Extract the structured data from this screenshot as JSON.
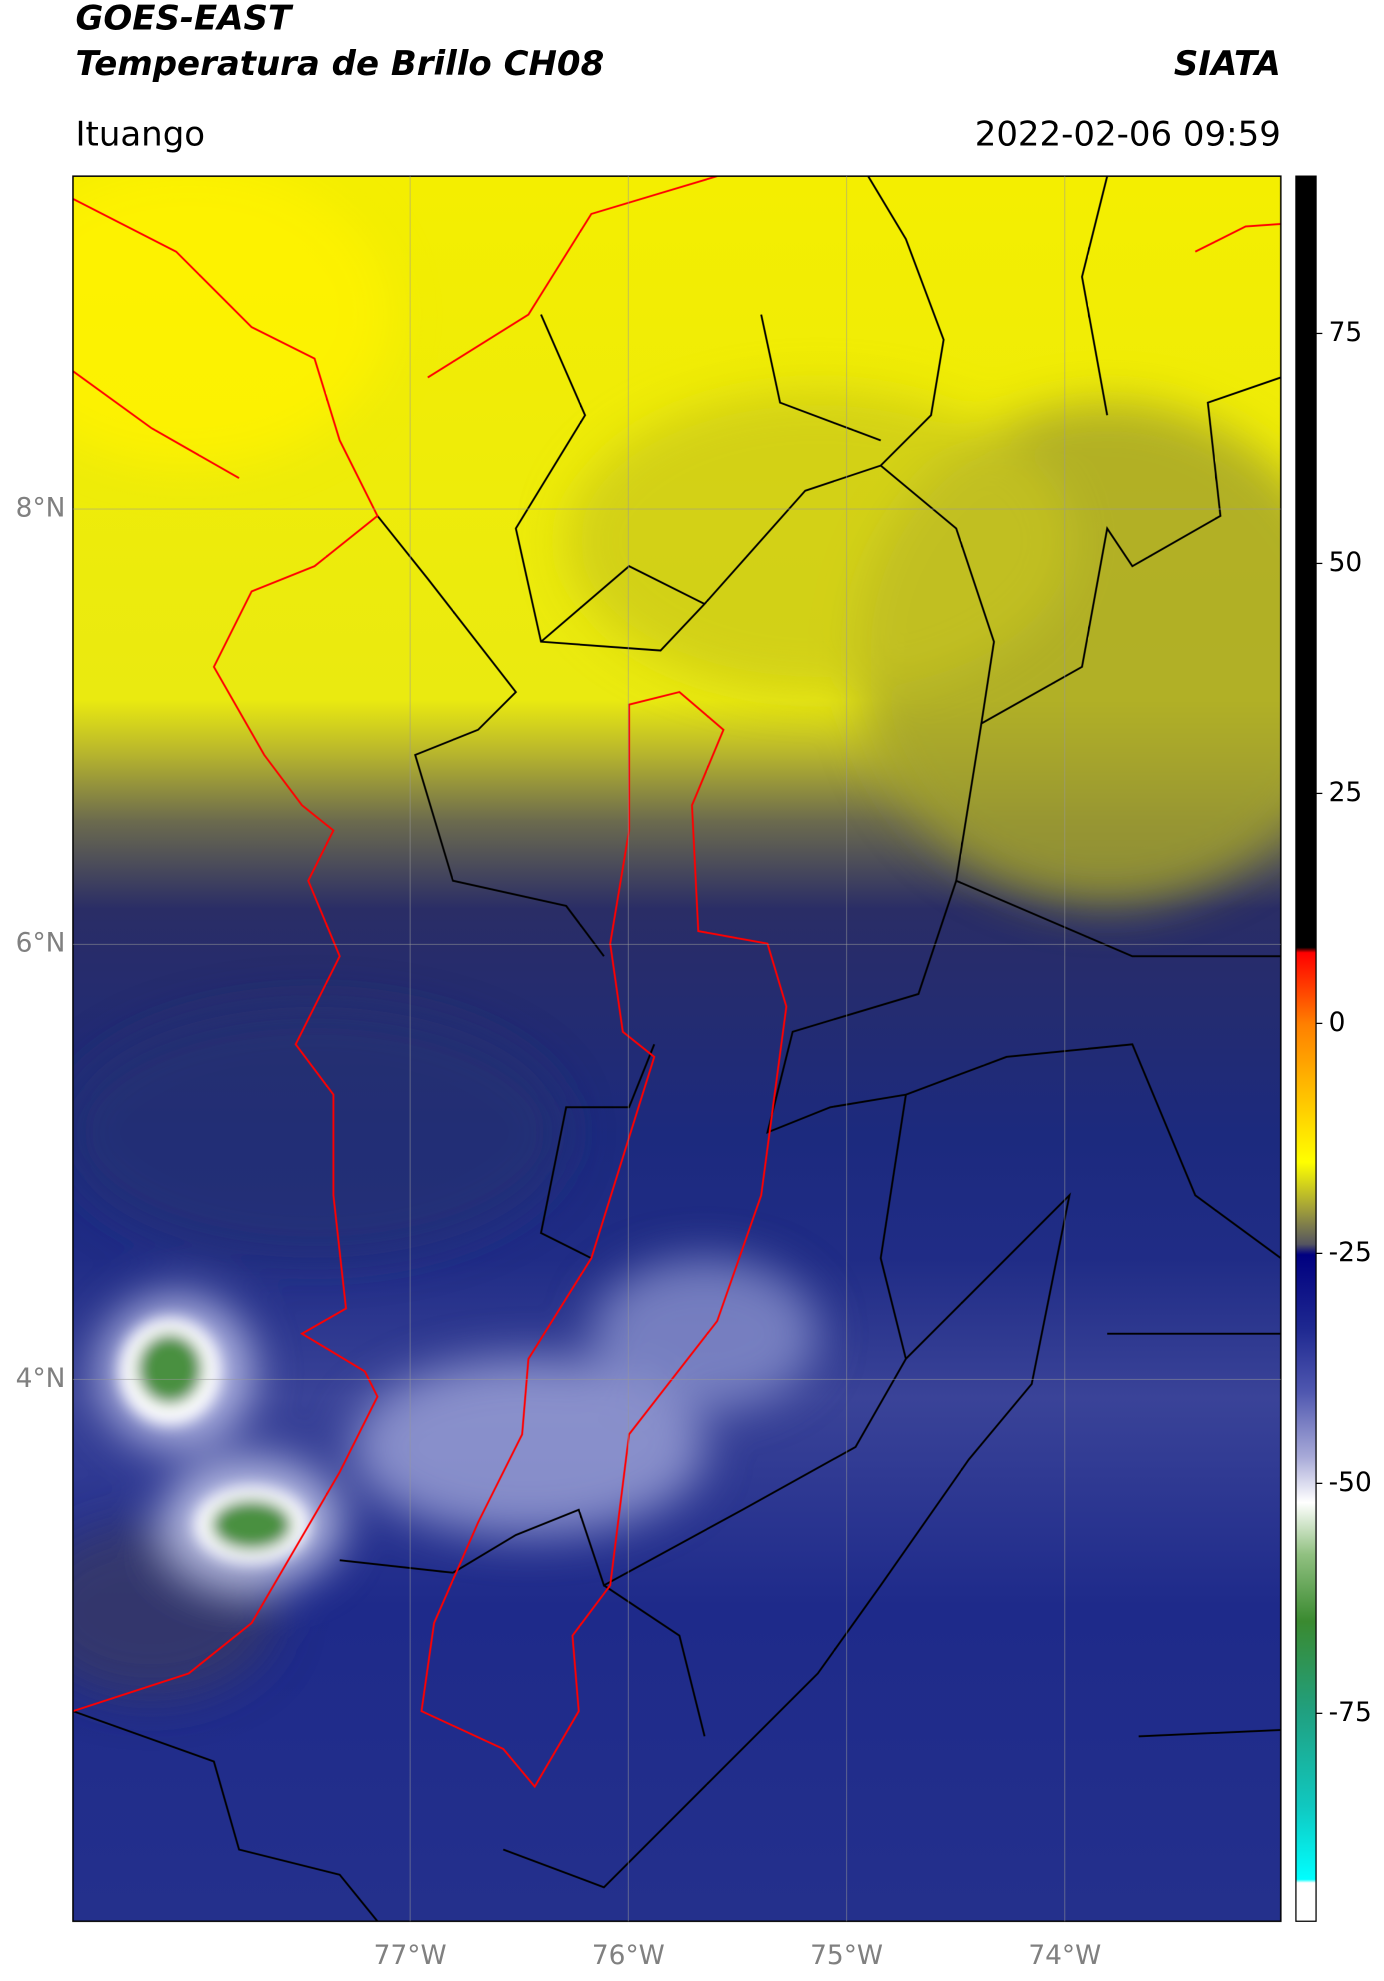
{
  "header": {
    "title": "GOES-EAST",
    "subtitle": "Temperatura de Brillo CH08",
    "source": "SIATA",
    "location": "Ituango",
    "timestamp": "2022-02-06 09:59"
  },
  "map": {
    "xlim": [
      -78.545,
      -73.01
    ],
    "ylim": [
      1.51,
      9.53
    ],
    "xticks": [
      {
        "value": -77,
        "label": "77°W"
      },
      {
        "value": -76,
        "label": "76°W"
      },
      {
        "value": -75,
        "label": "75°W"
      },
      {
        "value": -74,
        "label": "74°W"
      }
    ],
    "yticks": [
      {
        "value": 8,
        "label": "8°N"
      },
      {
        "value": 6,
        "label": "6°N"
      },
      {
        "value": 4,
        "label": "4°N"
      }
    ],
    "grid": true
  },
  "colorbar": {
    "lim": [
      -97.6,
      92.1
    ],
    "ticks": [
      75,
      50,
      25,
      0,
      -25,
      -50,
      -75
    ]
  }
}
